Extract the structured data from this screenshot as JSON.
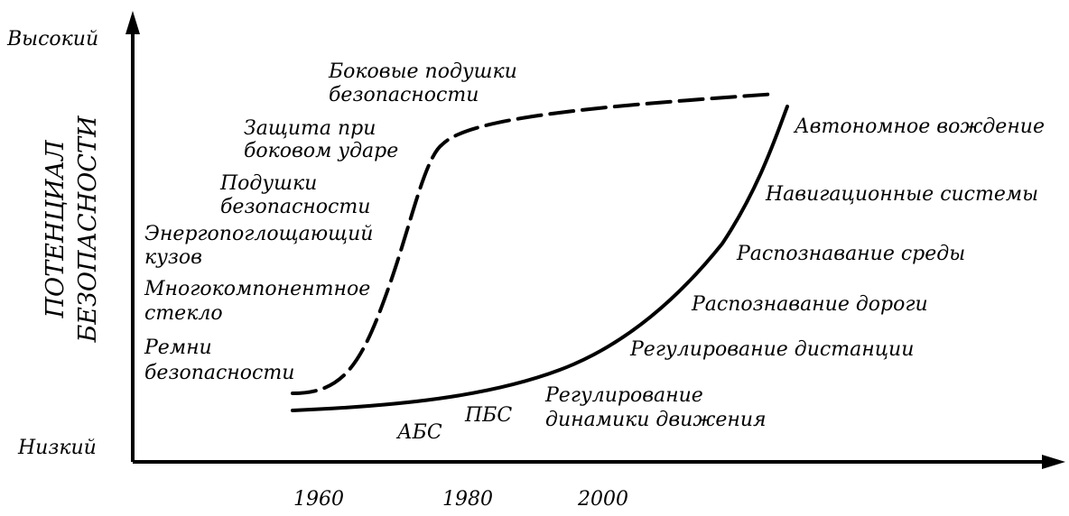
{
  "chart_data": {
    "type": "line",
    "title": "",
    "ylabel_lines": [
      "ПОТЕНЦИАЛ",
      "БЕЗОПАСНОСТИ"
    ],
    "xlabel": "",
    "y_axis_labels": {
      "top": "Высокий",
      "bottom": "Низкий"
    },
    "x_ticks": [
      "1960",
      "1980",
      "2000"
    ],
    "series": [
      {
        "style": "dashed",
        "annotations": [
          {
            "lines": [
              "Ремни",
              "безопасности"
            ]
          },
          {
            "lines": [
              "Многокомпонентное",
              "стекло"
            ]
          },
          {
            "lines": [
              "Энергопоглощающий",
              "кузов"
            ]
          },
          {
            "lines": [
              "Подушки",
              "безопасности"
            ]
          },
          {
            "lines": [
              "Защита при",
              "боковом ударе"
            ]
          },
          {
            "lines": [
              "Боковые подушки",
              "безопасности"
            ]
          }
        ]
      },
      {
        "style": "solid",
        "annotations": [
          {
            "lines": [
              "АБС"
            ]
          },
          {
            "lines": [
              "ПБС"
            ]
          },
          {
            "lines": [
              "Регулирование",
              "динамики движения"
            ]
          },
          {
            "lines": [
              "Регулирование дистанции"
            ]
          },
          {
            "lines": [
              "Распознавание дороги"
            ]
          },
          {
            "lines": [
              "Распознавание среды"
            ]
          },
          {
            "lines": [
              "Навигационные системы"
            ]
          },
          {
            "lines": [
              "Автономное вождение"
            ]
          }
        ]
      }
    ],
    "grid": false,
    "legend": "none"
  }
}
